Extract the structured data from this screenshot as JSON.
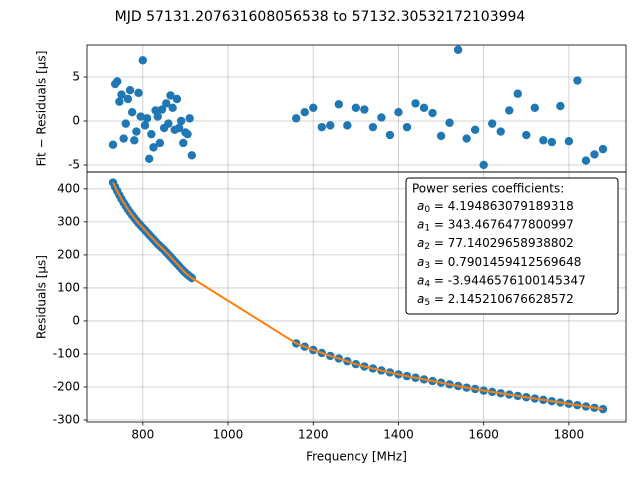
{
  "title": "MJD 57131.207631608056538 to 57132.30532172103994",
  "chart_data": [
    {
      "type": "scatter",
      "ylabel": "Fit − Residuals [μs]",
      "grid": true,
      "xlim": [
        669,
        1934
      ],
      "xticks": [
        800,
        1000,
        1200,
        1400,
        1600,
        1800
      ],
      "ylim": [
        -5.8,
        8.64
      ],
      "yticks": [
        -5,
        0,
        5
      ],
      "series": [
        {
          "color": "#1f77b4",
          "x": [
            730,
            735,
            740,
            745,
            750,
            755,
            760,
            765,
            770,
            775,
            780,
            785,
            790,
            795,
            800,
            805,
            810,
            815,
            820,
            825,
            830,
            835,
            840,
            845,
            850,
            855,
            860,
            865,
            870,
            875,
            880,
            885,
            890,
            895,
            900,
            905,
            910,
            915,
            1160,
            1180,
            1200,
            1220,
            1240,
            1260,
            1280,
            1300,
            1320,
            1340,
            1360,
            1380,
            1400,
            1420,
            1440,
            1460,
            1480,
            1500,
            1520,
            1540,
            1560,
            1580,
            1600,
            1620,
            1640,
            1660,
            1680,
            1700,
            1720,
            1740,
            1760,
            1780,
            1800,
            1820,
            1840,
            1860,
            1880
          ],
          "values": [
            -2.7,
            4.2,
            4.5,
            2.2,
            3.0,
            -2.0,
            -0.3,
            2.5,
            3.5,
            1.0,
            -2.2,
            -1.2,
            3.2,
            0.5,
            6.9,
            -0.5,
            0.3,
            -4.3,
            -1.5,
            -3.0,
            1.2,
            0.5,
            -2.5,
            1.3,
            -0.8,
            2.0,
            -0.3,
            2.9,
            1.5,
            -1.0,
            2.5,
            -0.8,
            0.0,
            -2.5,
            -1.3,
            -1.5,
            0.3,
            -3.9,
            0.3,
            1.0,
            1.5,
            -0.7,
            -0.5,
            1.9,
            -0.5,
            1.5,
            1.3,
            -0.7,
            0.4,
            -1.6,
            1.0,
            -0.7,
            2.0,
            1.5,
            0.9,
            -1.7,
            -0.2,
            8.1,
            -2.0,
            -1.0,
            -5.0,
            -0.3,
            -1.2,
            1.2,
            3.1,
            -1.6,
            1.5,
            -2.2,
            -2.4,
            1.7,
            -2.3,
            4.6,
            -4.5,
            -3.8,
            -3.2
          ]
        }
      ]
    },
    {
      "type": "scatter",
      "xlabel": "Frequency [MHz]",
      "ylabel": "Residuals [μs]",
      "grid": true,
      "xlim": [
        669,
        1934
      ],
      "xticks": [
        800,
        1000,
        1200,
        1400,
        1600,
        1800
      ],
      "ylim": [
        -306,
        451
      ],
      "yticks": [
        -300,
        -200,
        -100,
        0,
        100,
        200,
        300,
        400
      ],
      "series": [
        {
          "color": "#1f77b4",
          "mode": "markers",
          "x": [
            730,
            735,
            740,
            745,
            750,
            755,
            760,
            765,
            770,
            775,
            780,
            785,
            790,
            795,
            800,
            805,
            810,
            815,
            820,
            825,
            830,
            835,
            840,
            845,
            850,
            855,
            860,
            865,
            870,
            875,
            880,
            885,
            890,
            895,
            900,
            905,
            910,
            915,
            1160,
            1180,
            1200,
            1220,
            1240,
            1260,
            1280,
            1300,
            1320,
            1340,
            1360,
            1380,
            1400,
            1420,
            1440,
            1460,
            1480,
            1500,
            1520,
            1540,
            1560,
            1580,
            1600,
            1620,
            1640,
            1660,
            1680,
            1700,
            1720,
            1740,
            1760,
            1780,
            1800,
            1820,
            1840,
            1860,
            1880
          ],
          "values": [
            419,
            406,
            393,
            381,
            369,
            358,
            348,
            338,
            329,
            320,
            312,
            304,
            296,
            289,
            282,
            275,
            268,
            261,
            254,
            247,
            240,
            233,
            227,
            221,
            215,
            208,
            201,
            194,
            187,
            180,
            173,
            166,
            159,
            152,
            146,
            140,
            135,
            130,
            -68,
            -78,
            -88,
            -97,
            -106,
            -114,
            -122,
            -131,
            -138,
            -144,
            -150,
            -156,
            -162,
            -167,
            -172,
            -177,
            -182,
            -187,
            -192,
            -197,
            -202,
            -206,
            -211,
            -215,
            -219,
            -223,
            -227,
            -231,
            -235,
            -239,
            -243,
            -247,
            -251,
            -255,
            -259,
            -263,
            -267
          ]
        },
        {
          "color": "#ff7f0e",
          "mode": "line",
          "x": [
            730,
            735,
            740,
            745,
            750,
            755,
            760,
            765,
            770,
            775,
            780,
            785,
            790,
            795,
            800,
            805,
            810,
            815,
            820,
            825,
            830,
            835,
            840,
            845,
            850,
            855,
            860,
            865,
            870,
            875,
            880,
            885,
            890,
            895,
            900,
            905,
            910,
            915,
            1160,
            1180,
            1200,
            1220,
            1240,
            1260,
            1280,
            1300,
            1320,
            1340,
            1360,
            1380,
            1400,
            1420,
            1440,
            1460,
            1480,
            1500,
            1520,
            1540,
            1560,
            1580,
            1600,
            1620,
            1640,
            1660,
            1680,
            1700,
            1720,
            1740,
            1760,
            1780,
            1800,
            1820,
            1840,
            1860,
            1880
          ],
          "values": [
            419,
            406,
            393,
            381,
            369,
            358,
            348,
            338,
            329,
            320,
            312,
            304,
            296,
            289,
            282,
            275,
            268,
            261,
            254,
            247,
            240,
            233,
            227,
            221,
            215,
            208,
            201,
            194,
            187,
            180,
            173,
            166,
            159,
            152,
            146,
            140,
            135,
            130,
            -68,
            -78,
            -88,
            -97,
            -106,
            -114,
            -122,
            -131,
            -138,
            -144,
            -150,
            -156,
            -162,
            -167,
            -172,
            -177,
            -182,
            -187,
            -192,
            -197,
            -202,
            -206,
            -211,
            -215,
            -219,
            -223,
            -227,
            -231,
            -235,
            -239,
            -243,
            -247,
            -251,
            -255,
            -259,
            -263,
            -267
          ]
        }
      ],
      "annotation": {
        "heading": "Power series coefficients:",
        "lines": [
          {
            "var": "a",
            "sub": "0",
            "rest": " = 4.194863079189318"
          },
          {
            "var": "a",
            "sub": "1",
            "rest": " = 343.4676477800997"
          },
          {
            "var": "a",
            "sub": "2",
            "rest": " = 77.14029658938802"
          },
          {
            "var": "a",
            "sub": "3",
            "rest": " = 0.7901459412569648"
          },
          {
            "var": "a",
            "sub": "4",
            "rest": " = -3.9446576100145347"
          },
          {
            "var": "a",
            "sub": "5",
            "rest": " = 2.145210676628572"
          }
        ]
      }
    }
  ]
}
